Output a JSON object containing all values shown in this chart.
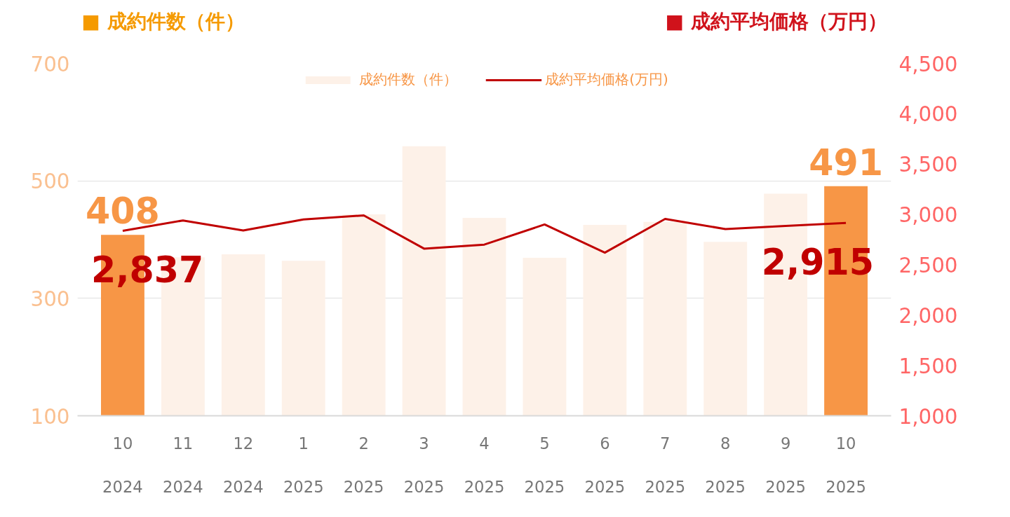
{
  "chart_data": {
    "type": "bar",
    "ylabel": "■ 成約件数（件）",
    "y2label": "■ 成約平均価格（万円）",
    "categories": [
      "10\n2024",
      "11\n2024",
      "12\n2024",
      "1\n2025",
      "2\n2025",
      "3\n2025",
      "4\n2025",
      "5\n2025",
      "6\n2025",
      "7\n2025",
      "8\n2025",
      "9\n2025",
      "10\n2025"
    ],
    "series": [
      {
        "name": "成約件数（件）",
        "colors": [
          "#f79646",
          "#fdf1e8",
          "#fdf1e8",
          "#fdf1e8",
          "#fdf1e8",
          "#fdf1e8",
          "#fdf1e8",
          "#fdf1e8",
          "#fdf1e8",
          "#fdf1e8",
          "#fdf1e8",
          "#fdf1e8",
          "#f79646"
        ],
        "values": [
          408,
          370,
          375,
          364,
          443,
          559,
          437,
          369,
          425,
          430,
          396,
          478,
          491
        ],
        "value_labels": [
          "408",
          null,
          null,
          null,
          null,
          null,
          null,
          null,
          null,
          null,
          null,
          null,
          "491"
        ]
      },
      {
        "name": "成約平均価格(万円)",
        "type": "line",
        "axis": "y2",
        "color": "#c00000",
        "values": [
          2837,
          2940,
          2840,
          2950,
          2990,
          2660,
          2700,
          2900,
          2620,
          2955,
          2855,
          2885,
          2915
        ],
        "value_labels": [
          "2,837",
          null,
          null,
          null,
          null,
          null,
          null,
          null,
          null,
          null,
          null,
          null,
          "2,915"
        ]
      }
    ],
    "ylim": [
      100,
      700
    ],
    "yticks": [
      100,
      300,
      500,
      700
    ],
    "y2lim": [
      1000,
      4500
    ],
    "y2ticks": [
      {
        "value": 1000,
        "label": "1,000"
      },
      {
        "value": 1500,
        "label": "1,500"
      },
      {
        "value": 2000,
        "label": "2,000"
      },
      {
        "value": 2500,
        "label": "2,500"
      },
      {
        "value": 3000,
        "label": "3,000"
      },
      {
        "value": 3500,
        "label": "3,500"
      },
      {
        "value": 4000,
        "label": "4,000"
      },
      {
        "value": 4500,
        "label": "4,500"
      }
    ],
    "grid": "y",
    "legend": "top",
    "marker": "none",
    "line_style": "solid"
  }
}
